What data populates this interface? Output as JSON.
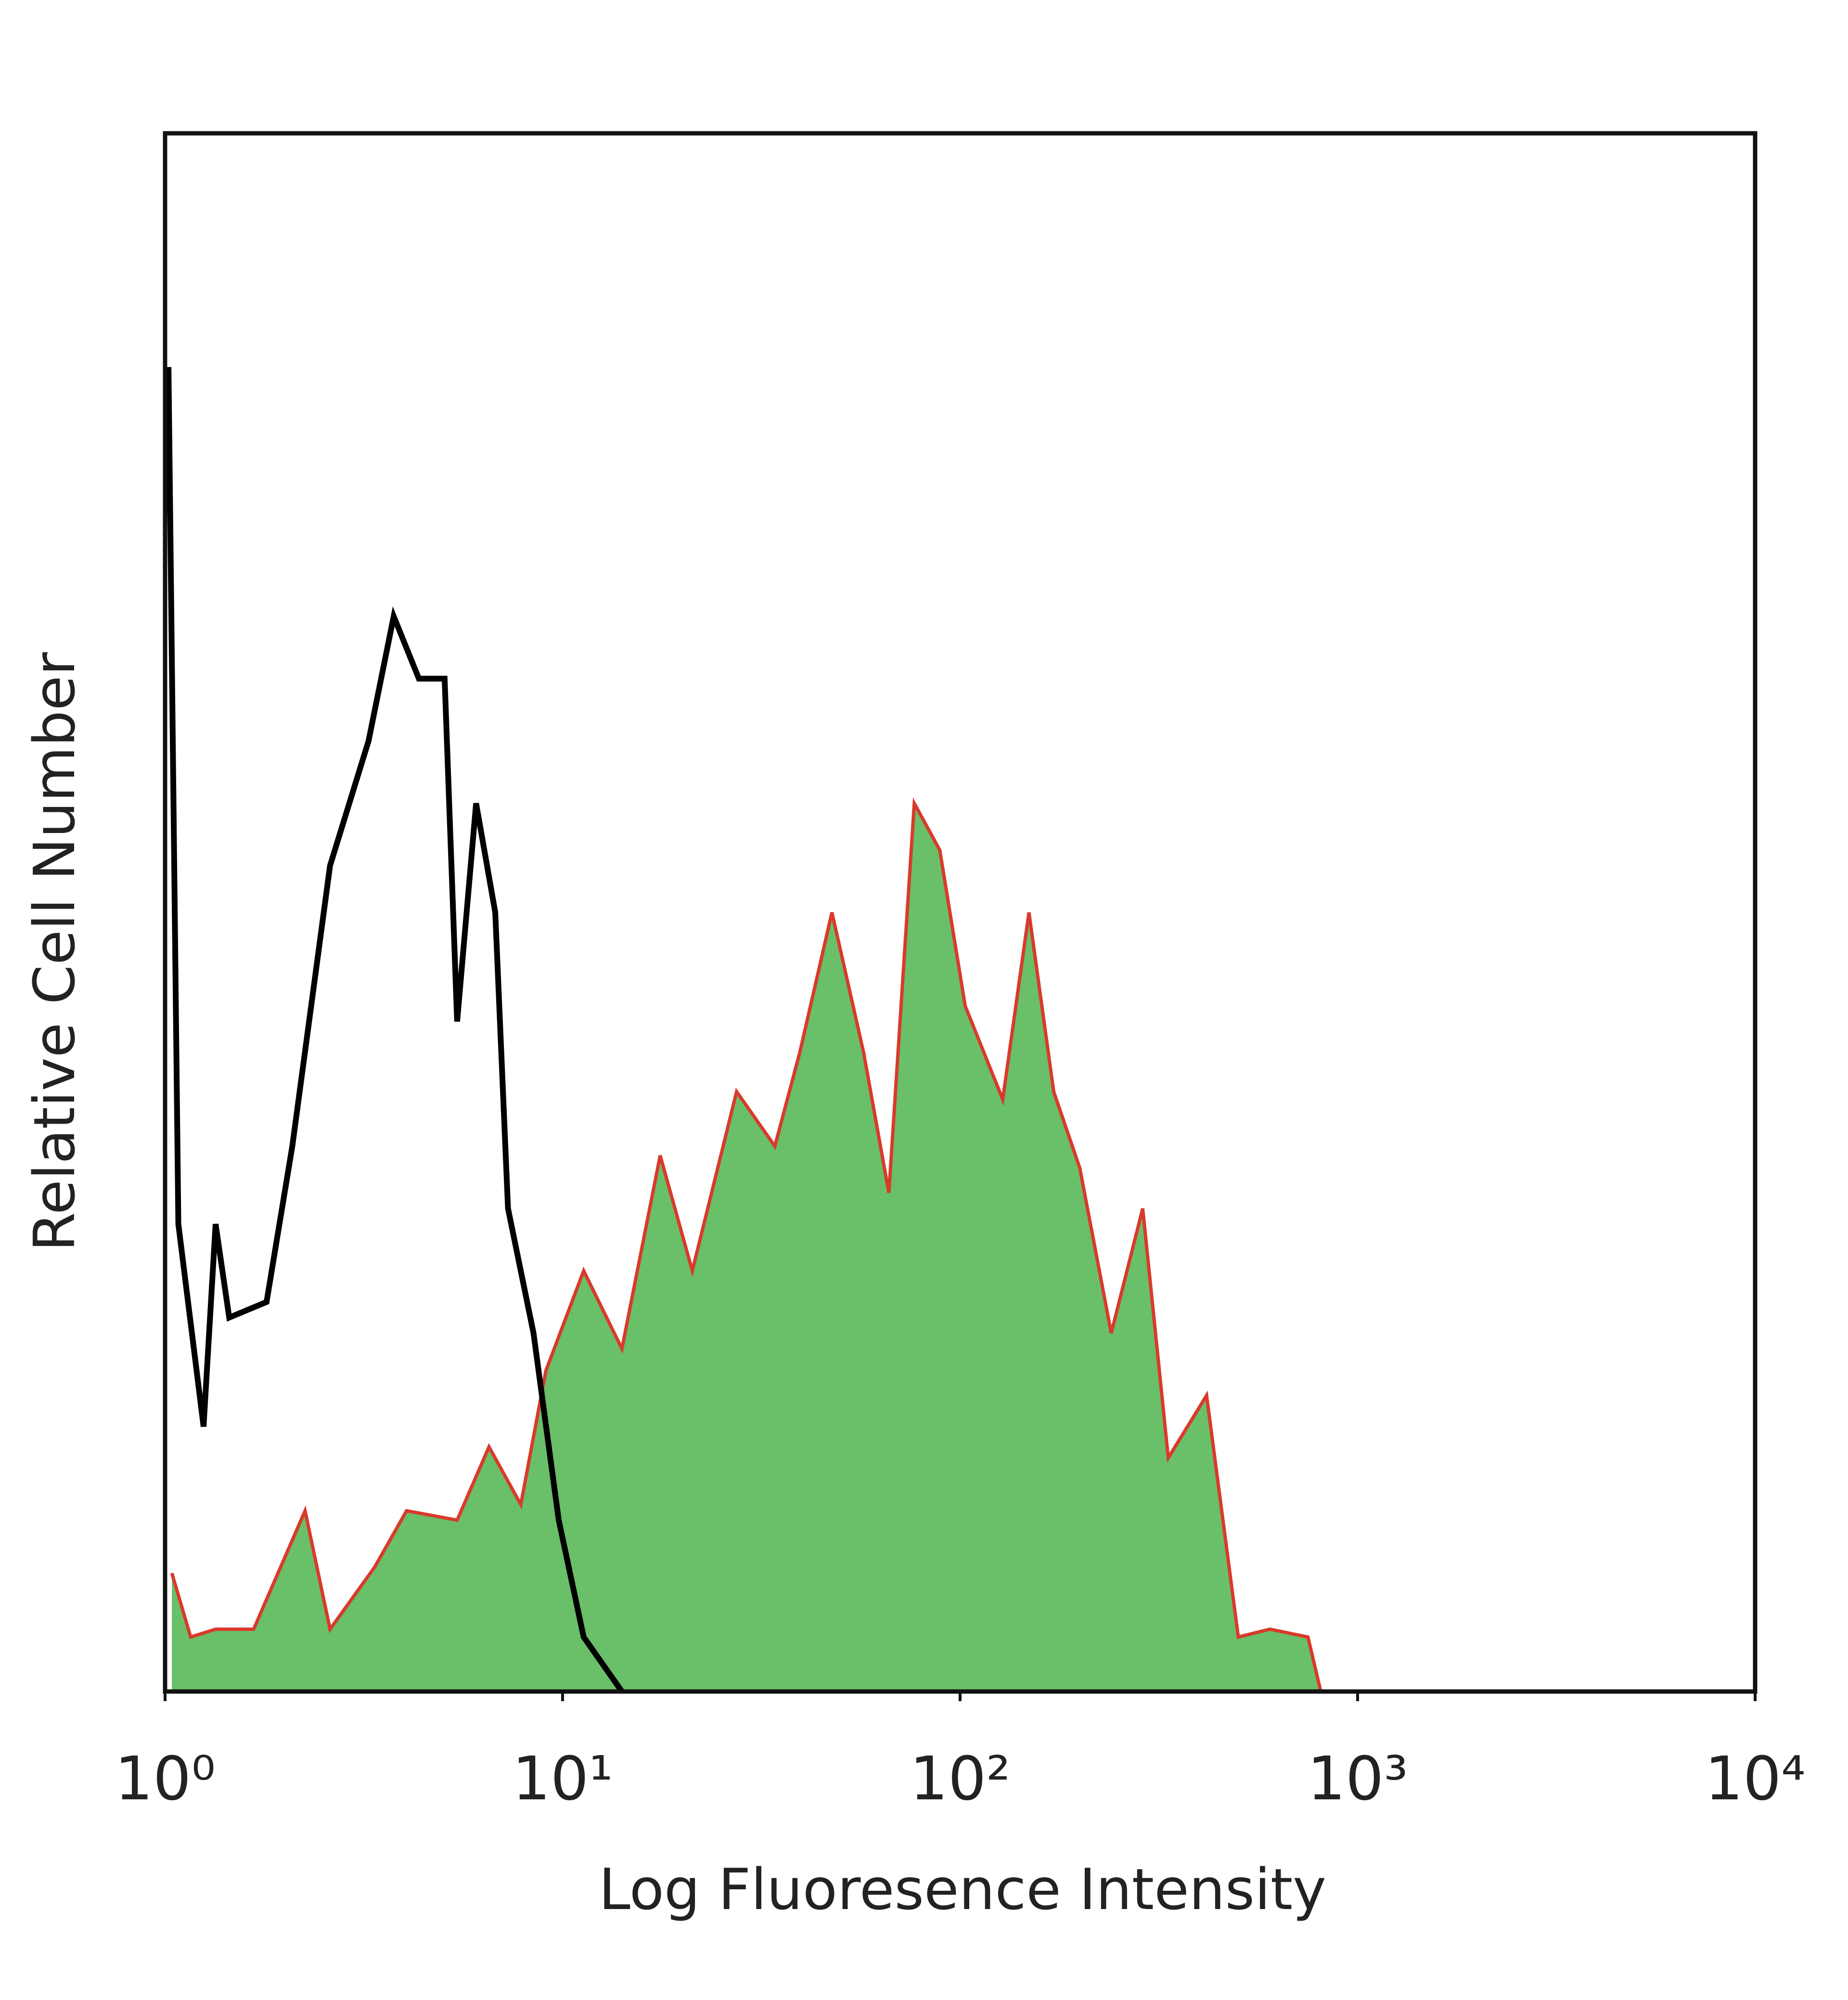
{
  "chart_data": {
    "type": "histogram-overlay",
    "xlabel": "Log Fluoresence Intensity",
    "ylabel": "Relative Cell Number",
    "xscale": "log",
    "xlim": [
      1,
      10000
    ],
    "xticks": [
      {
        "value": 1,
        "label": "10⁰"
      },
      {
        "value": 10,
        "label": "10¹"
      },
      {
        "value": 100,
        "label": "10²"
      },
      {
        "value": 1000,
        "label": "10³"
      },
      {
        "value": 10000,
        "label": "10⁴"
      }
    ],
    "ylim": [
      0,
      100
    ],
    "series": [
      {
        "color": "#6abf69",
        "edge_color": "#d93a2b",
        "filled": true,
        "x": [
          1.04,
          1.16,
          1.34,
          1.67,
          2.25,
          2.6,
          3.37,
          4.05,
          5.43,
          6.53,
          7.85,
          9.08,
          11.3,
          14.1,
          17.6,
          21.2,
          27.4,
          34.2,
          39.5,
          47.6,
          57.2,
          66.2,
          76.7,
          88.9,
          103,
          128,
          149,
          172,
          200,
          240,
          288,
          334,
          417,
          501,
          602,
          750,
          808
        ],
        "values": [
          7.6,
          3.5,
          4,
          4,
          11.6,
          4,
          8,
          11.6,
          11,
          15.7,
          12,
          20.6,
          27,
          22,
          34.4,
          27,
          38.5,
          35,
          41,
          50,
          41,
          32,
          57,
          54,
          44,
          38,
          50,
          38.5,
          33.6,
          23,
          31,
          15,
          19,
          3.5,
          4,
          3.5,
          0
        ]
      },
      {
        "color": "#000000",
        "filled": false,
        "x": [
          1.02,
          1.08,
          1.25,
          1.34,
          1.45,
          1.8,
          2.09,
          2.6,
          3.25,
          3.76,
          4.35,
          5.05,
          5.43,
          6.06,
          6.77,
          7.29,
          8.45,
          9.78,
          11.3,
          14.1
        ],
        "values": [
          85,
          30,
          17,
          30,
          24,
          25,
          35,
          53,
          61,
          69,
          65,
          65,
          43,
          57,
          50,
          31,
          23,
          11,
          3.5,
          0
        ]
      }
    ]
  }
}
